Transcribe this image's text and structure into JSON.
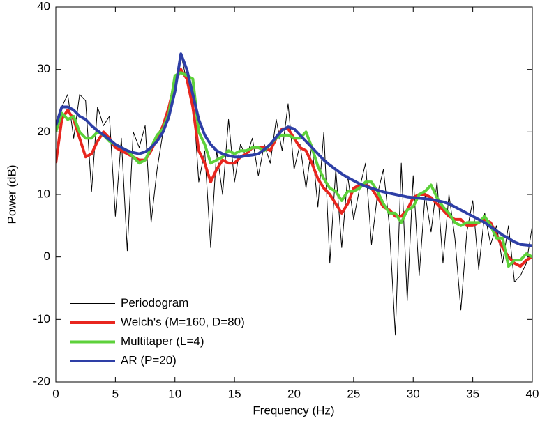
{
  "chart_data": {
    "type": "line",
    "xlabel": "Frequency (Hz)",
    "ylabel": "Power (dB)",
    "xlim": [
      0,
      40
    ],
    "ylim": [
      -20,
      40
    ],
    "xticks": [
      0,
      5,
      10,
      15,
      20,
      25,
      30,
      35,
      40
    ],
    "yticks": [
      -20,
      -10,
      0,
      10,
      20,
      30,
      40
    ],
    "legend": "lower left",
    "x": [
      0,
      0.5,
      1,
      1.5,
      2,
      2.5,
      3,
      3.5,
      4,
      4.5,
      5,
      5.5,
      6,
      6.5,
      7,
      7.5,
      8,
      8.5,
      9,
      9.5,
      10,
      10.5,
      11,
      11.5,
      12,
      12.5,
      13,
      13.5,
      14,
      14.5,
      15,
      15.5,
      16,
      16.5,
      17,
      17.5,
      18,
      18.5,
      19,
      19.5,
      20,
      20.5,
      21,
      21.5,
      22,
      22.5,
      23,
      23.5,
      24,
      24.5,
      25,
      25.5,
      26,
      26.5,
      27,
      27.5,
      28,
      28.5,
      29,
      29.5,
      30,
      30.5,
      31,
      31.5,
      32,
      32.5,
      33,
      33.5,
      34,
      34.5,
      35,
      35.5,
      36,
      36.5,
      37,
      37.5,
      38,
      38.5,
      39,
      39.5,
      40
    ],
    "series": [
      {
        "name": "Periodogram",
        "color": "#000000",
        "width": 1,
        "values": [
          20,
          24,
          26,
          19,
          26,
          25,
          10.5,
          24,
          21,
          22.5,
          6.5,
          19,
          1,
          20,
          17.5,
          21,
          5.5,
          14,
          20,
          22,
          27,
          32.5,
          28,
          26,
          12,
          17,
          1.5,
          17,
          10,
          22,
          12,
          18,
          16,
          19,
          13,
          18,
          15,
          22,
          17,
          24.5,
          14,
          18,
          11,
          18,
          8,
          20,
          -1,
          14,
          1.5,
          13,
          6,
          11,
          15,
          2,
          10,
          14,
          5,
          -12.5,
          15,
          -7,
          13,
          -3,
          10,
          4,
          12,
          -1,
          10,
          3,
          -8.5,
          4,
          9,
          -2,
          7,
          2,
          5,
          -1,
          5,
          -4,
          -3,
          -1,
          5
        ]
      },
      {
        "name": "Welch's (M=160, D=80)",
        "color": "#e8261f",
        "width": 4,
        "values": [
          15,
          22,
          23.5,
          22,
          19,
          16,
          16.5,
          18.5,
          20,
          19,
          17.5,
          17,
          16.5,
          16,
          15.5,
          15.5,
          17,
          19,
          21,
          24,
          28,
          30,
          28.5,
          24,
          17,
          15,
          12,
          14,
          15.5,
          15,
          15,
          16,
          16.5,
          17.5,
          17.5,
          17.5,
          17,
          19,
          20.5,
          20.5,
          19,
          17.5,
          17,
          15,
          12.5,
          11,
          10,
          8.5,
          7,
          8.5,
          11,
          11.5,
          11.5,
          11,
          9.5,
          8,
          7.5,
          6.5,
          6.5,
          7.5,
          9.5,
          10,
          10,
          9.5,
          8.5,
          7.5,
          6.5,
          6,
          6,
          5,
          5,
          5.5,
          6,
          5.5,
          3.5,
          1.5,
          0,
          -1,
          -1.5,
          -0.5,
          0
        ]
      },
      {
        "name": "Multitaper (L=4)",
        "color": "#5dd13b",
        "width": 4,
        "values": [
          20,
          23,
          22,
          22.5,
          20,
          19,
          19,
          20,
          19.5,
          18.5,
          18,
          17.5,
          17,
          16,
          15,
          15.5,
          17.5,
          19.5,
          20.5,
          23,
          29,
          29.5,
          29,
          28.5,
          20,
          18,
          15,
          15.5,
          16,
          17,
          16.5,
          17,
          17,
          17.5,
          17.5,
          17,
          18,
          19,
          19.5,
          19.5,
          19,
          19,
          20,
          17.5,
          14.5,
          12.5,
          11,
          10.5,
          9,
          10.5,
          10.5,
          11,
          12,
          12,
          10.5,
          8.5,
          7,
          7,
          5.5,
          7.5,
          8,
          10,
          10.5,
          11.5,
          9.5,
          8,
          7,
          5.5,
          5,
          5.5,
          5.5,
          5.5,
          6.5,
          5,
          3,
          3,
          -1.5,
          -0.5,
          -0.5,
          0.5,
          0
        ]
      },
      {
        "name": "AR (P=20)",
        "color": "#2e3fa6",
        "width": 4,
        "values": [
          21,
          24,
          24,
          23.5,
          22.5,
          22,
          21,
          20.2,
          19.5,
          18.8,
          18,
          17.5,
          17,
          16.7,
          16.5,
          16.8,
          17.5,
          18.5,
          20,
          22.5,
          26.5,
          32.5,
          30,
          26,
          22,
          19.5,
          18,
          17,
          16.5,
          16.2,
          16,
          16,
          16.2,
          16.3,
          16.5,
          17.2,
          18,
          19.2,
          20.3,
          20.8,
          20.5,
          19.5,
          18.5,
          17.5,
          16.5,
          15.5,
          14.7,
          14,
          13.3,
          12.7,
          12.2,
          11.7,
          11.3,
          11,
          10.7,
          10.4,
          10.2,
          10,
          9.8,
          9.6,
          9.5,
          9.4,
          9.3,
          9.2,
          9,
          8.8,
          8.5,
          8,
          7.5,
          7,
          6.5,
          6,
          5.5,
          4.8,
          4.2,
          3.5,
          3,
          2.4,
          2,
          1.9,
          1.8
        ]
      }
    ]
  }
}
